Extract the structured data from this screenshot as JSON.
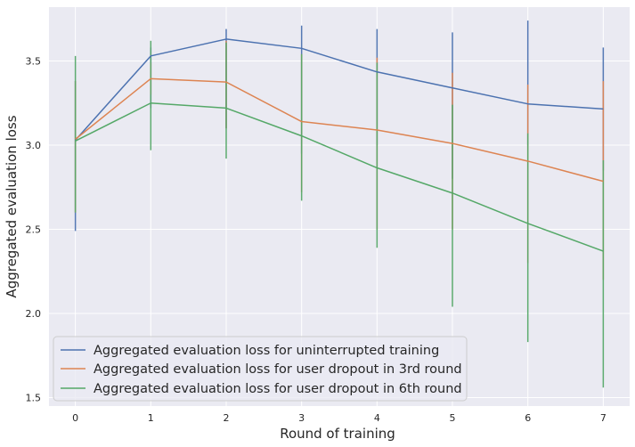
{
  "chart_data": {
    "type": "line",
    "title": "",
    "xlabel": "Round of training",
    "ylabel": "Aggregated evaluation loss",
    "x": [
      0,
      1,
      2,
      3,
      4,
      5,
      6,
      7
    ],
    "x_ticks": [
      "0",
      "1",
      "2",
      "3",
      "4",
      "5",
      "6",
      "7"
    ],
    "y_ticks": [
      "1.5",
      "2.0",
      "2.5",
      "3.0",
      "3.5"
    ],
    "xlim": [
      -0.35,
      7.35
    ],
    "ylim": [
      1.45,
      3.82
    ],
    "grid": true,
    "legend_position": "lower-left",
    "background": "#eaeaf2",
    "series": [
      {
        "name": "Aggregated evaluation loss for uninterrupted training",
        "color": "#4c72b0",
        "values": [
          3.03,
          3.53,
          3.63,
          3.575,
          3.435,
          3.34,
          3.245,
          3.215
        ],
        "err_low": [
          2.49,
          3.22,
          3.1,
          2.95,
          3.0,
          2.8,
          3.0,
          2.85
        ],
        "err_high": [
          3.38,
          3.58,
          3.69,
          3.71,
          3.69,
          3.67,
          3.74,
          3.58
        ]
      },
      {
        "name": "Aggregated evaluation loss for user dropout in 3rd round",
        "color": "#dd8452",
        "values": [
          3.035,
          3.395,
          3.375,
          3.14,
          3.09,
          3.01,
          2.905,
          2.785
        ],
        "err_low": [
          2.6,
          3.3,
          3.1,
          2.72,
          2.5,
          2.5,
          2.3,
          2.2
        ],
        "err_high": [
          3.38,
          3.49,
          3.62,
          3.54,
          3.52,
          3.43,
          3.36,
          3.38
        ]
      },
      {
        "name": "Aggregated evaluation loss for user dropout in 6th round",
        "color": "#55a868",
        "values": [
          3.025,
          3.25,
          3.22,
          3.055,
          2.865,
          2.715,
          2.535,
          2.37
        ],
        "err_low": [
          2.6,
          2.97,
          2.92,
          2.67,
          2.39,
          2.04,
          1.83,
          1.56
        ],
        "err_high": [
          3.53,
          3.62,
          3.61,
          3.54,
          3.49,
          3.24,
          3.07,
          2.91
        ]
      }
    ]
  }
}
